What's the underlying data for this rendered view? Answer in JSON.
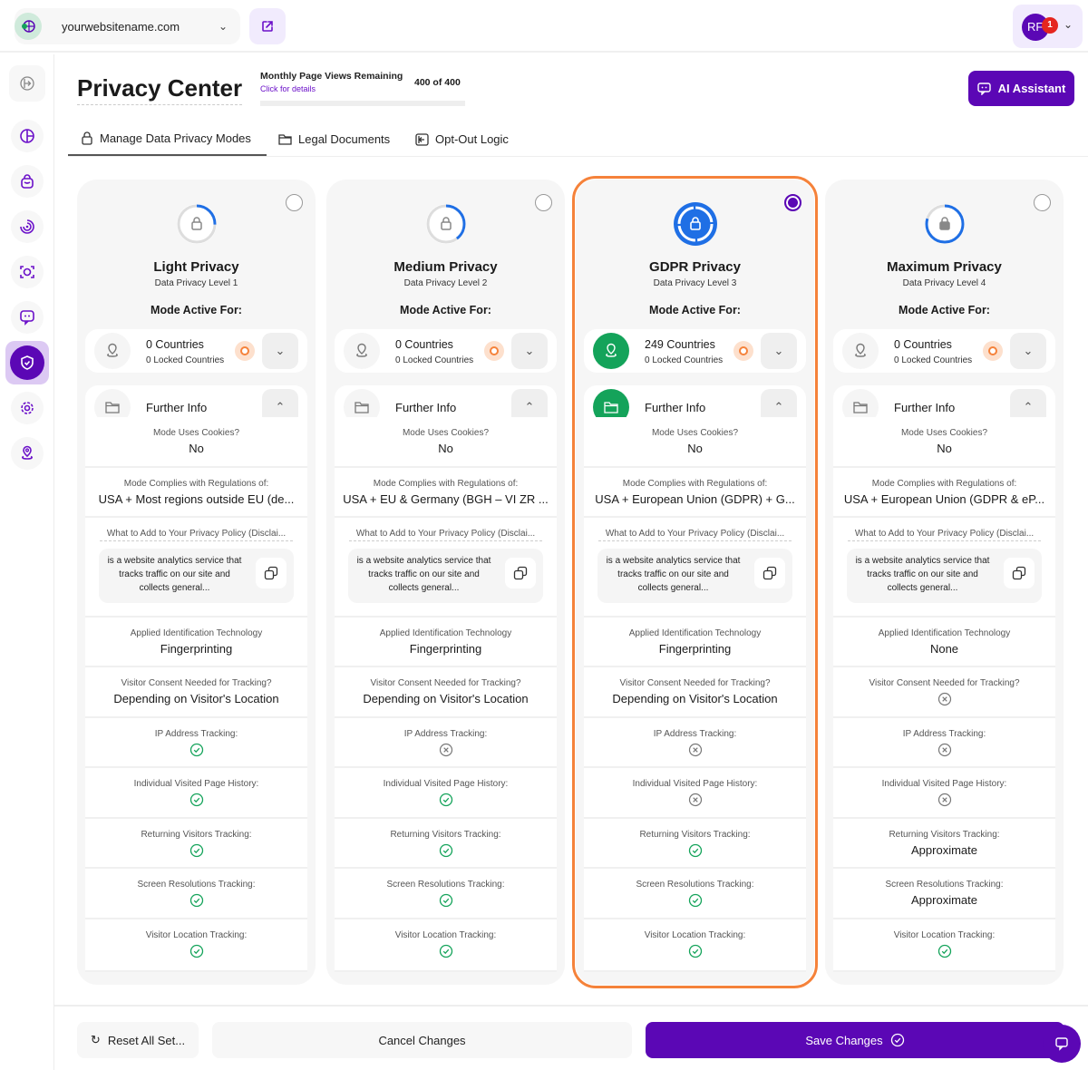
{
  "header": {
    "site": "yourwebsitename.com",
    "user_initials": "RF",
    "notifications": "1"
  },
  "page": {
    "title": "Privacy Center",
    "pageviews_label": "Monthly Page Views Remaining",
    "pageviews_link": "Click for details",
    "pageviews_count": "400 of 400",
    "pageviews_remaining_fraction": 1.0,
    "ai_button": "AI Assistant"
  },
  "tabs": [
    {
      "label": "Manage Data Privacy Modes",
      "icon": "lock-icon"
    },
    {
      "label": "Legal Documents",
      "icon": "folder-icon"
    },
    {
      "label": "Opt-Out Logic",
      "icon": "opt-out-icon"
    }
  ],
  "sidebar": [
    "logout-icon",
    "pie-chart-icon",
    "bag-icon",
    "radar-icon",
    "scan-icon",
    "chat-icon",
    "shield-check-icon",
    "gear-icon",
    "location-icon"
  ],
  "colors": {
    "accent": "#5b07b5",
    "selected_border": "#f5823a",
    "check": "#14a35a"
  },
  "labels": {
    "mode_active": "Mode Active For:",
    "further_info": "Further Info",
    "cookies": "Mode Uses Cookies?",
    "regulations": "Mode Complies with Regulations of:",
    "policy": "What to Add to Your Privacy Policy (Disclai...",
    "policy_text": "is a website analytics service that tracks traffic on our site and collects general...",
    "tech": "Applied Identification Technology",
    "consent": "Visitor Consent Needed for Tracking?",
    "ip": "IP Address Tracking:",
    "history": "Individual Visited Page History:",
    "returning": "Returning Visitors Tracking:",
    "screen": "Screen Resolutions Tracking:",
    "location": "Visitor Location Tracking:"
  },
  "cards": [
    {
      "title": "Light Privacy",
      "level": "Data Privacy Level 1",
      "selected": false,
      "countries": "0 Countries",
      "locked": "0 Locked Countries",
      "cookies": "No",
      "regulations": "USA + Most regions outside EU (de...",
      "tech": "Fingerprinting",
      "consent": {
        "text": "Depending on Visitor's Location"
      },
      "ip": {
        "icon": "check"
      },
      "history": {
        "icon": "check"
      },
      "returning": {
        "icon": "check"
      },
      "screen": {
        "icon": "check"
      },
      "location": {
        "icon": "check"
      }
    },
    {
      "title": "Medium Privacy",
      "level": "Data Privacy Level 2",
      "selected": false,
      "countries": "0 Countries",
      "locked": "0 Locked Countries",
      "cookies": "No",
      "regulations": "USA + EU & Germany (BGH – VI ZR ...",
      "tech": "Fingerprinting",
      "consent": {
        "text": "Depending on Visitor's Location"
      },
      "ip": {
        "icon": "cross"
      },
      "history": {
        "icon": "check"
      },
      "returning": {
        "icon": "check"
      },
      "screen": {
        "icon": "check"
      },
      "location": {
        "icon": "check"
      }
    },
    {
      "title": "GDPR Privacy",
      "level": "Data Privacy Level 3",
      "selected": true,
      "countries": "249 Countries",
      "locked": "0 Locked Countries",
      "cookies": "No",
      "regulations": "USA + European Union (GDPR) + G...",
      "tech": "Fingerprinting",
      "consent": {
        "text": "Depending on Visitor's Location"
      },
      "ip": {
        "icon": "cross"
      },
      "history": {
        "icon": "cross"
      },
      "returning": {
        "icon": "check"
      },
      "screen": {
        "icon": "check"
      },
      "location": {
        "icon": "check"
      }
    },
    {
      "title": "Maximum Privacy",
      "level": "Data Privacy Level 4",
      "selected": false,
      "countries": "0 Countries",
      "locked": "0 Locked Countries",
      "cookies": "No",
      "regulations": "USA + European Union (GDPR & eP...",
      "tech": "None",
      "consent": {
        "icon": "cross"
      },
      "ip": {
        "icon": "cross"
      },
      "history": {
        "icon": "cross"
      },
      "returning": {
        "text": "Approximate"
      },
      "screen": {
        "text": "Approximate"
      },
      "location": {
        "icon": "check"
      }
    }
  ],
  "footer": {
    "reset": "Reset All Set...",
    "cancel": "Cancel Changes",
    "save": "Save Changes"
  }
}
